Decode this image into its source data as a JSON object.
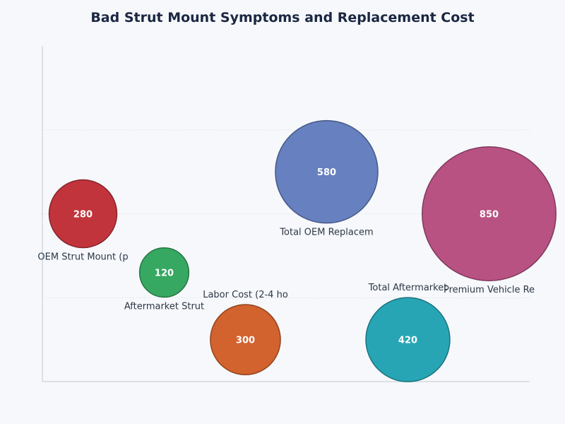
{
  "chart_data": {
    "type": "scatter",
    "subtype": "bubble",
    "title": "Bad Strut Mount Symptoms and Replacement Cost",
    "xlabel": "",
    "ylabel": "",
    "ylim": [
      0,
      4
    ],
    "grid": true,
    "legend": "none",
    "points": [
      {
        "label": "OEM Strut Mount (p",
        "x": 0,
        "y": 2.0,
        "value": 280,
        "color": "#c2343c"
      },
      {
        "label": "Aftermarket Strut",
        "x": 1,
        "y": 1.3,
        "value": 120,
        "color": "#36a862"
      },
      {
        "label": "Labor Cost (2-4 ho",
        "x": 2,
        "y": 0.5,
        "value": 300,
        "color": "#d2622e"
      },
      {
        "label": "Total OEM Replacem",
        "x": 3,
        "y": 2.5,
        "value": 580,
        "color": "#6680c0"
      },
      {
        "label": "Total Aftermarket",
        "x": 4,
        "y": 0.5,
        "value": 420,
        "color": "#27a5b5"
      },
      {
        "label": "Premium Vehicle Re",
        "x": 5,
        "y": 2.0,
        "value": 850,
        "color": "#b85282"
      }
    ]
  }
}
